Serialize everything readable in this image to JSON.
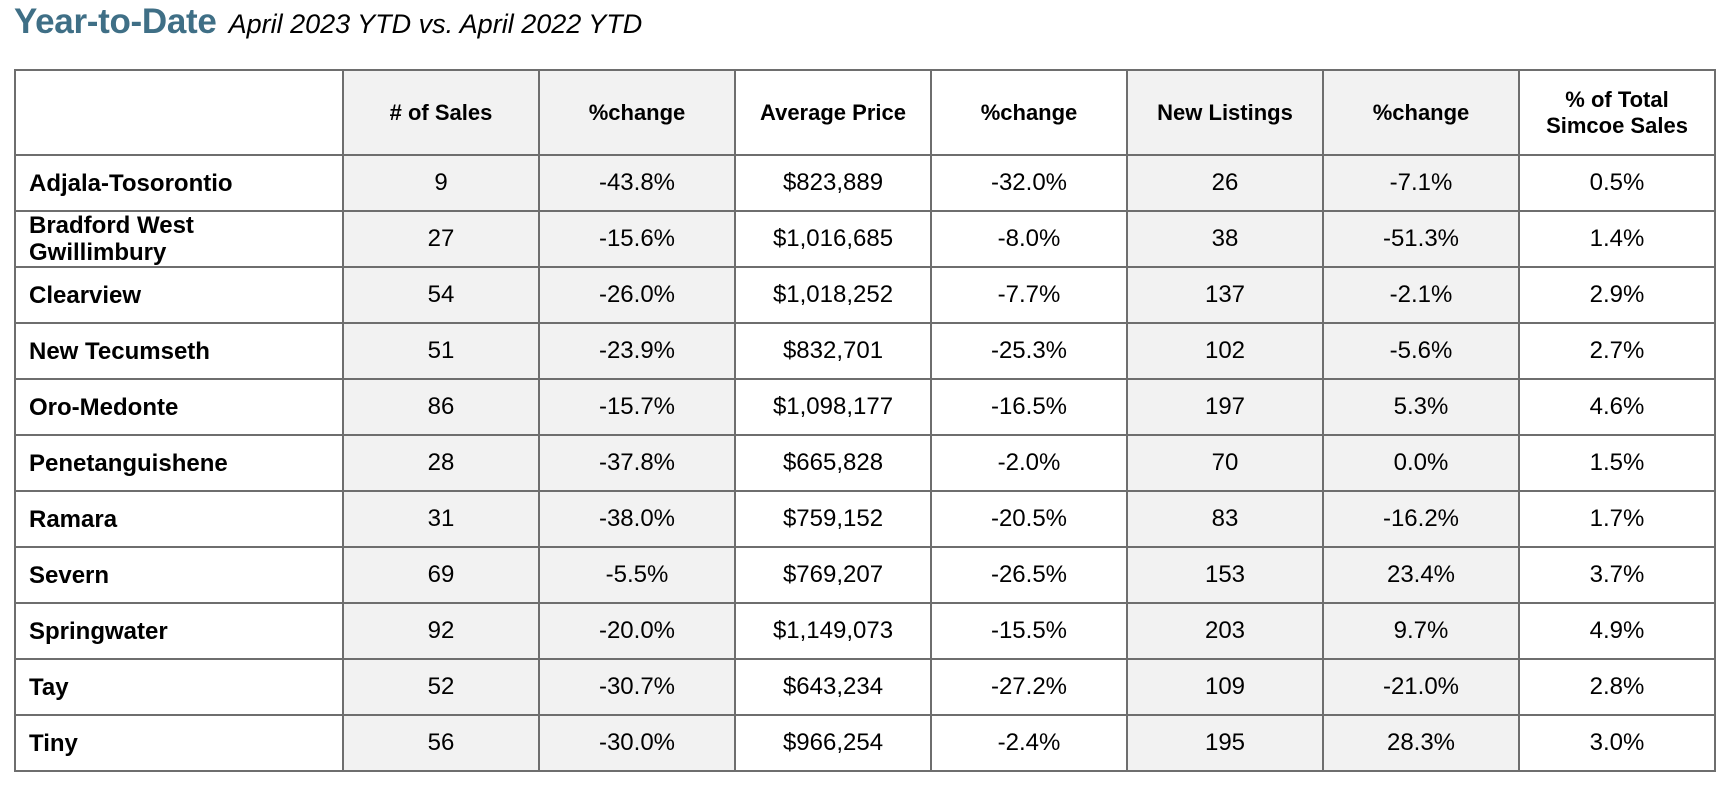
{
  "heading": {
    "title": "Year-to-Date",
    "subtitle": "April 2023 YTD vs. April 2022 YTD"
  },
  "colors": {
    "title": "#3f6f86",
    "shaded_column": "#f2f2f2",
    "border": "#6e6e6e"
  },
  "table": {
    "columns": [
      "",
      "# of Sales",
      "%change",
      "Average Price",
      "%change",
      "New Listings",
      "%change",
      "% of Total\nSimcoe Sales"
    ],
    "rows": [
      {
        "area": "Adjala-Tosorontio",
        "sales": "9",
        "sales_change": "-43.8%",
        "avg_price": "$823,889",
        "price_change": "-32.0%",
        "new_listings": "26",
        "listings_change": "-7.1%",
        "pct_total": "0.5%"
      },
      {
        "area": "Bradford West\nGwillimbury",
        "sales": "27",
        "sales_change": "-15.6%",
        "avg_price": "$1,016,685",
        "price_change": "-8.0%",
        "new_listings": "38",
        "listings_change": "-51.3%",
        "pct_total": "1.4%"
      },
      {
        "area": "Clearview",
        "sales": "54",
        "sales_change": "-26.0%",
        "avg_price": "$1,018,252",
        "price_change": "-7.7%",
        "new_listings": "137",
        "listings_change": "-2.1%",
        "pct_total": "2.9%"
      },
      {
        "area": "New Tecumseth",
        "sales": "51",
        "sales_change": "-23.9%",
        "avg_price": "$832,701",
        "price_change": "-25.3%",
        "new_listings": "102",
        "listings_change": "-5.6%",
        "pct_total": "2.7%"
      },
      {
        "area": "Oro-Medonte",
        "sales": "86",
        "sales_change": "-15.7%",
        "avg_price": "$1,098,177",
        "price_change": "-16.5%",
        "new_listings": "197",
        "listings_change": "5.3%",
        "pct_total": "4.6%"
      },
      {
        "area": "Penetanguishene",
        "sales": "28",
        "sales_change": "-37.8%",
        "avg_price": "$665,828",
        "price_change": "-2.0%",
        "new_listings": "70",
        "listings_change": "0.0%",
        "pct_total": "1.5%"
      },
      {
        "area": "Ramara",
        "sales": "31",
        "sales_change": "-38.0%",
        "avg_price": "$759,152",
        "price_change": "-20.5%",
        "new_listings": "83",
        "listings_change": "-16.2%",
        "pct_total": "1.7%"
      },
      {
        "area": "Severn",
        "sales": "69",
        "sales_change": "-5.5%",
        "avg_price": "$769,207",
        "price_change": "-26.5%",
        "new_listings": "153",
        "listings_change": "23.4%",
        "pct_total": "3.7%"
      },
      {
        "area": "Springwater",
        "sales": "92",
        "sales_change": "-20.0%",
        "avg_price": "$1,149,073",
        "price_change": "-15.5%",
        "new_listings": "203",
        "listings_change": "9.7%",
        "pct_total": "4.9%"
      },
      {
        "area": "Tay",
        "sales": "52",
        "sales_change": "-30.7%",
        "avg_price": "$643,234",
        "price_change": "-27.2%",
        "new_listings": "109",
        "listings_change": "-21.0%",
        "pct_total": "2.8%"
      },
      {
        "area": "Tiny",
        "sales": "56",
        "sales_change": "-30.0%",
        "avg_price": "$966,254",
        "price_change": "-2.4%",
        "new_listings": "195",
        "listings_change": "28.3%",
        "pct_total": "3.0%"
      }
    ]
  }
}
